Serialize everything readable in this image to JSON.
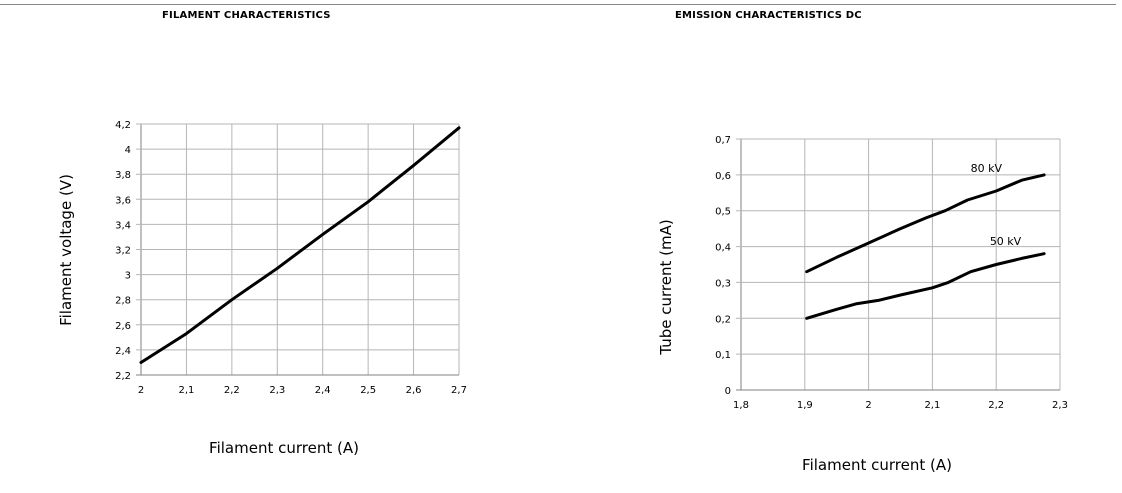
{
  "chart_data": [
    {
      "type": "line",
      "title": "FILAMENT CHARACTERISTICS",
      "xlabel": "Filament current (A)",
      "ylabel": "Filament voltage (V)",
      "xlim": [
        2,
        2.7
      ],
      "ylim": [
        2.2,
        4.2
      ],
      "x_ticks": [
        "2",
        "2,1",
        "2,2",
        "2,3",
        "2,4",
        "2,5",
        "2,6",
        "2,7"
      ],
      "y_ticks": [
        "2,2",
        "2,4",
        "2,6",
        "2,8",
        "3",
        "3,2",
        "3,4",
        "3,6",
        "3,8",
        "4",
        "4,2"
      ],
      "grid": true,
      "series": [
        {
          "x": [
            2.0,
            2.1,
            2.2,
            2.3,
            2.4,
            2.5,
            2.6,
            2.7
          ],
          "y": [
            2.3,
            2.53,
            2.8,
            3.05,
            3.32,
            3.58,
            3.87,
            4.17
          ]
        }
      ]
    },
    {
      "type": "line",
      "title": "EMISSION CHARACTERISTICS DC",
      "xlabel": "Filament current (A)",
      "ylabel": "Tube current (mA)",
      "xlim": [
        1.8,
        2.3
      ],
      "ylim": [
        0,
        0.7
      ],
      "x_ticks": [
        "1,8",
        "1,9",
        "2",
        "2,1",
        "2,2",
        "2,3"
      ],
      "y_ticks": [
        "0",
        "0,1",
        "0,2",
        "0,3",
        "0,4",
        "0,5",
        "0,6",
        "0,7"
      ],
      "grid": true,
      "series": [
        {
          "name": "80 kV",
          "x": [
            1.903,
            1.95,
            2.0,
            2.05,
            2.09,
            2.12,
            2.155,
            2.2,
            2.24,
            2.275
          ],
          "y": [
            0.33,
            0.37,
            0.41,
            0.45,
            0.48,
            0.5,
            0.53,
            0.555,
            0.585,
            0.6
          ]
        },
        {
          "name": "50 kV",
          "x": [
            1.903,
            1.95,
            1.98,
            2.015,
            2.05,
            2.1,
            2.125,
            2.16,
            2.2,
            2.24,
            2.275
          ],
          "y": [
            0.2,
            0.225,
            0.24,
            0.25,
            0.265,
            0.285,
            0.3,
            0.33,
            0.35,
            0.367,
            0.38
          ]
        }
      ]
    }
  ]
}
